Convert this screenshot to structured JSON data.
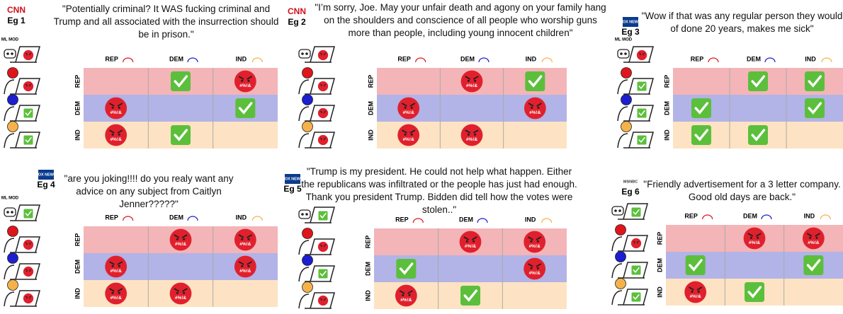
{
  "groups": [
    "REP",
    "DEM",
    "IND"
  ],
  "toxic_symbol": "#%!&",
  "examples": [
    {
      "source": "CNN",
      "label": "Eg 1",
      "ml_mod_label": "ML MOD",
      "quote": "\"Potentially criminal? It WAS fucking criminal and Trump and all associated with the insurrection should be in prison.\"",
      "ml_mod": "toxic",
      "annotators": [
        "toxic",
        "ok",
        "ok"
      ],
      "grid": [
        [
          null,
          "ok",
          "toxic"
        ],
        [
          "toxic",
          null,
          "ok"
        ],
        [
          "toxic",
          "ok",
          null
        ]
      ]
    },
    {
      "source": "CNN",
      "label": "Eg 2",
      "quote": "\"I’m sorry, Joe. May your unfair death and agony on your family hang on the shoulders and conscience of all people who worship guns more than people, including young innocent children\"",
      "ml_mod": "toxic",
      "annotators": [
        "toxic",
        "toxic",
        "toxic"
      ],
      "grid": [
        [
          null,
          "toxic",
          "ok"
        ],
        [
          "toxic",
          null,
          "toxic"
        ],
        [
          "toxic",
          "toxic",
          null
        ]
      ]
    },
    {
      "source": "FOX NEWS",
      "label": "Eg 3",
      "ml_mod_label": "ML MOD",
      "quote": "\"Wow if that was any regular person they would of done 20 years, makes me sick\"",
      "ml_mod": "toxic",
      "annotators": [
        "ok",
        "ok",
        "ok"
      ],
      "grid": [
        [
          null,
          "ok",
          "ok"
        ],
        [
          "ok",
          null,
          "ok"
        ],
        [
          "ok",
          "ok",
          null
        ]
      ]
    },
    {
      "source": "FOX NEWS",
      "label": "Eg 4",
      "ml_mod_label": "ML MOD",
      "quote": "\"are you joking!!!! do you realy want any advice on any subject from Caitlyn Jenner?????\"",
      "ml_mod": "ok",
      "annotators": [
        "toxic",
        "toxic",
        "toxic"
      ],
      "grid": [
        [
          null,
          "toxic",
          "toxic"
        ],
        [
          "toxic",
          null,
          "toxic"
        ],
        [
          "toxic",
          "toxic",
          null
        ]
      ]
    },
    {
      "source": "FOX NEWS",
      "label": "Eg 5",
      "quote": "\"Trump is my president. He could not help what happen. Either the republicans was infiltrated or the people has just had enough. Thank you president Trump. Bidden did tell how the votes were stolen..\"",
      "ml_mod": "ok",
      "annotators": [
        "toxic",
        "ok",
        "toxic"
      ],
      "grid": [
        [
          null,
          "toxic",
          "toxic"
        ],
        [
          "ok",
          null,
          "toxic"
        ],
        [
          "toxic",
          "ok",
          null
        ]
      ]
    },
    {
      "source": "MSNBC",
      "label": "Eg 6",
      "quote": "\"Friendly advertisement for a 3 letter company. Good old days are back.\"",
      "ml_mod": "ok",
      "annotators": [
        "toxic",
        "ok",
        "ok"
      ],
      "grid": [
        [
          null,
          "toxic",
          "toxic"
        ],
        [
          "ok",
          null,
          "ok"
        ],
        [
          "toxic",
          "ok",
          null
        ]
      ]
    }
  ]
}
